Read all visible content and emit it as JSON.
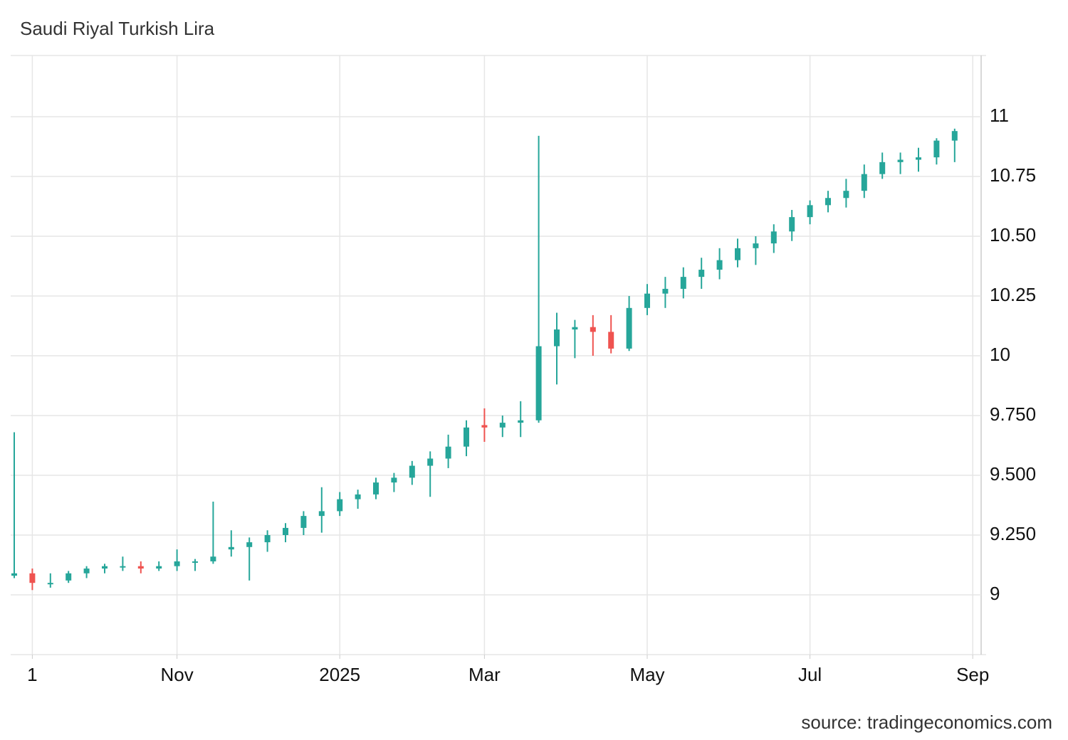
{
  "chart_data": {
    "type": "candlestick",
    "title": "Saudi Riyal Turkish Lira",
    "source": "source: tradingeconomics.com",
    "categories": [
      null,
      "1",
      null,
      null,
      null,
      null,
      null,
      null,
      null,
      "Nov",
      null,
      null,
      null,
      null,
      null,
      null,
      null,
      null,
      "2025",
      null,
      null,
      null,
      null,
      null,
      null,
      null,
      "Mar",
      null,
      null,
      null,
      null,
      null,
      null,
      null,
      null,
      "May",
      null,
      null,
      null,
      null,
      null,
      null,
      null,
      null,
      "Jul",
      null,
      null,
      null,
      null,
      null,
      null,
      null,
      null,
      "Sep"
    ],
    "open": [
      9.08,
      9.09,
      9.05,
      9.06,
      9.09,
      9.11,
      9.12,
      9.12,
      9.11,
      9.12,
      9.14,
      9.14,
      9.19,
      9.2,
      9.22,
      9.25,
      9.28,
      9.33,
      9.35,
      9.4,
      9.42,
      9.47,
      9.49,
      9.54,
      9.57,
      9.62,
      9.71,
      9.7,
      9.72,
      9.73,
      10.04,
      10.11,
      10.12,
      10.1,
      10.03,
      10.2,
      10.26,
      10.28,
      10.33,
      10.36,
      10.4,
      10.45,
      10.47,
      10.52,
      10.58,
      10.63,
      10.66,
      10.69,
      10.76,
      10.81,
      10.82,
      10.83,
      10.9,
      null
    ],
    "high": [
      9.68,
      9.11,
      9.09,
      9.1,
      9.12,
      9.13,
      9.16,
      9.14,
      9.14,
      9.19,
      9.15,
      9.39,
      9.27,
      9.24,
      9.27,
      9.3,
      9.35,
      9.45,
      9.43,
      9.44,
      9.49,
      9.51,
      9.56,
      9.6,
      9.67,
      9.73,
      9.78,
      9.75,
      9.81,
      10.92,
      10.18,
      10.15,
      10.17,
      10.17,
      10.25,
      10.3,
      10.33,
      10.37,
      10.41,
      10.45,
      10.49,
      10.5,
      10.55,
      10.61,
      10.65,
      10.69,
      10.74,
      10.8,
      10.85,
      10.85,
      10.87,
      10.91,
      10.95,
      null
    ],
    "low": [
      9.07,
      9.02,
      9.03,
      9.05,
      9.07,
      9.09,
      9.1,
      9.09,
      9.1,
      9.1,
      9.1,
      9.13,
      9.16,
      9.06,
      9.18,
      9.22,
      9.25,
      9.26,
      9.33,
      9.36,
      9.4,
      9.43,
      9.46,
      9.41,
      9.53,
      9.58,
      9.64,
      9.66,
      9.66,
      9.72,
      9.88,
      9.99,
      10.0,
      10.01,
      10.02,
      10.17,
      10.2,
      10.24,
      10.28,
      10.32,
      10.37,
      10.38,
      10.43,
      10.48,
      10.55,
      10.6,
      10.62,
      10.66,
      10.74,
      10.76,
      10.77,
      10.8,
      10.81,
      null
    ],
    "close": [
      9.09,
      9.05,
      9.05,
      9.09,
      9.11,
      9.12,
      9.12,
      9.11,
      9.12,
      9.14,
      9.14,
      9.16,
      9.2,
      9.22,
      9.25,
      9.28,
      9.33,
      9.35,
      9.4,
      9.42,
      9.47,
      9.49,
      9.54,
      9.57,
      9.62,
      9.7,
      9.7,
      9.72,
      9.73,
      10.04,
      10.11,
      10.12,
      10.1,
      10.03,
      10.2,
      10.26,
      10.28,
      10.33,
      10.36,
      10.4,
      10.45,
      10.47,
      10.52,
      10.58,
      10.63,
      10.66,
      10.69,
      10.76,
      10.81,
      10.82,
      10.83,
      10.9,
      10.94,
      null
    ],
    "up_color": "#26a69a",
    "down_color": "#ef5350",
    "ylim": [
      8.75,
      11.256
    ],
    "yticks": [
      9,
      {
        "value": 9.25,
        "label": "9.250"
      },
      {
        "value": 9.5,
        "label": "9.500"
      },
      {
        "value": 9.75,
        "label": "9.750"
      },
      10,
      10.25,
      {
        "value": 10.5,
        "label": "10.50"
      },
      10.75,
      11
    ],
    "grid": true
  }
}
